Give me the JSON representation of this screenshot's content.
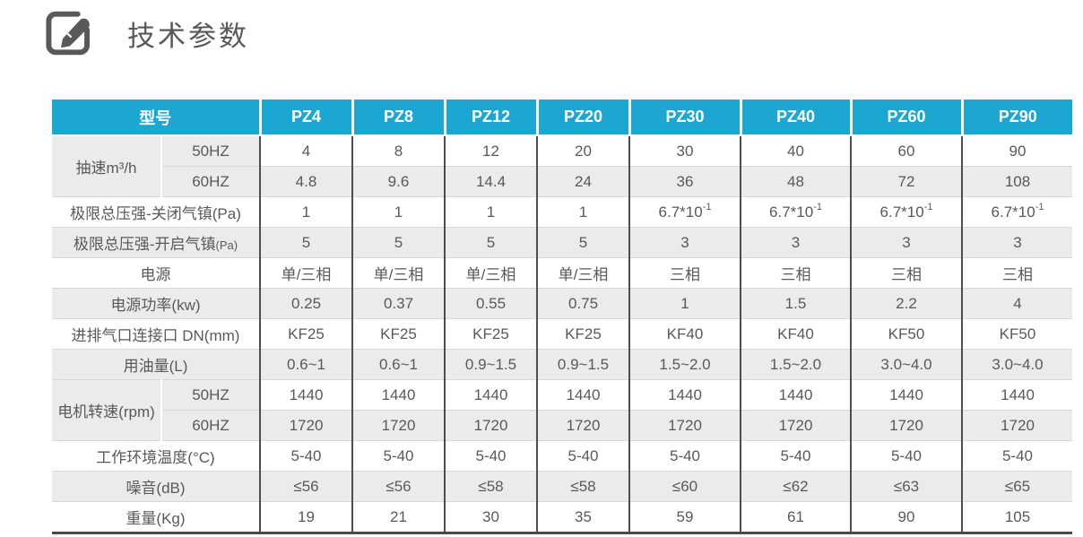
{
  "title": {
    "text": "技术参数",
    "icon": "edit-icon"
  },
  "colors": {
    "accent_cyan": "#1ba7d2",
    "row_alt_gray": "#ebebeb",
    "border_dark": "#4d4d4d",
    "border_light": "#d8d8d8",
    "text_gray": "#595959",
    "header_text": "#ffffff"
  },
  "table": {
    "corner_label": "型号",
    "models": [
      "PZ4",
      "PZ8",
      "PZ12",
      "PZ20",
      "PZ30",
      "PZ40",
      "PZ60",
      "PZ90"
    ],
    "rows": [
      {
        "group": "抽速m³/h",
        "sub": "50HZ",
        "values": [
          "4",
          "8",
          "12",
          "20",
          "30",
          "40",
          "60",
          "90"
        ]
      },
      {
        "sub": "60HZ",
        "values": [
          "4.8",
          "9.6",
          "14.4",
          "24",
          "36",
          "48",
          "72",
          "108"
        ]
      },
      {
        "label": "极限总压强-关闭气镇(Pa)",
        "values": [
          "1",
          "1",
          "1",
          "1",
          "6.7*10^-1",
          "6.7*10^-1",
          "6.7*10^-1",
          "6.7*10^-1"
        ]
      },
      {
        "label": "极限总压强-开启气镇",
        "small": "(Pa)",
        "values": [
          "5",
          "5",
          "5",
          "5",
          "3",
          "3",
          "3",
          "3"
        ]
      },
      {
        "label": "电源",
        "values": [
          "单/三相",
          "单/三相",
          "单/三相",
          "单/三相",
          "三相",
          "三相",
          "三相",
          "三相"
        ]
      },
      {
        "label": "电源功率(kw)",
        "values": [
          "0.25",
          "0.37",
          "0.55",
          "0.75",
          "1",
          "1.5",
          "2.2",
          "4"
        ]
      },
      {
        "label": "进排气口连接口 DN(mm)",
        "values": [
          "KF25",
          "KF25",
          "KF25",
          "KF25",
          "KF40",
          "KF40",
          "KF50",
          "KF50"
        ]
      },
      {
        "label": "用油量(L)",
        "values": [
          "0.6~1",
          "0.6~1",
          "0.9~1.5",
          "0.9~1.5",
          "1.5~2.0",
          "1.5~2.0",
          "3.0~4.0",
          "3.0~4.0"
        ]
      },
      {
        "group": "电机转速(rpm)",
        "sub": "50HZ",
        "values": [
          "1440",
          "1440",
          "1440",
          "1440",
          "1440",
          "1440",
          "1440",
          "1440"
        ]
      },
      {
        "sub": "60HZ",
        "values": [
          "1720",
          "1720",
          "1720",
          "1720",
          "1720",
          "1720",
          "1720",
          "1720"
        ]
      },
      {
        "label": "工作环境温度(°C)",
        "values": [
          "5-40",
          "5-40",
          "5-40",
          "5-40",
          "5-40",
          "5-40",
          "5-40",
          "5-40"
        ]
      },
      {
        "label": "噪音(dB)",
        "values": [
          "≤56",
          "≤56",
          "≤58",
          "≤58",
          "≤60",
          "≤62",
          "≤63",
          "≤65"
        ]
      },
      {
        "label": "重量(Kg)",
        "values": [
          "19",
          "21",
          "30",
          "35",
          "59",
          "61",
          "90",
          "105"
        ]
      }
    ]
  }
}
